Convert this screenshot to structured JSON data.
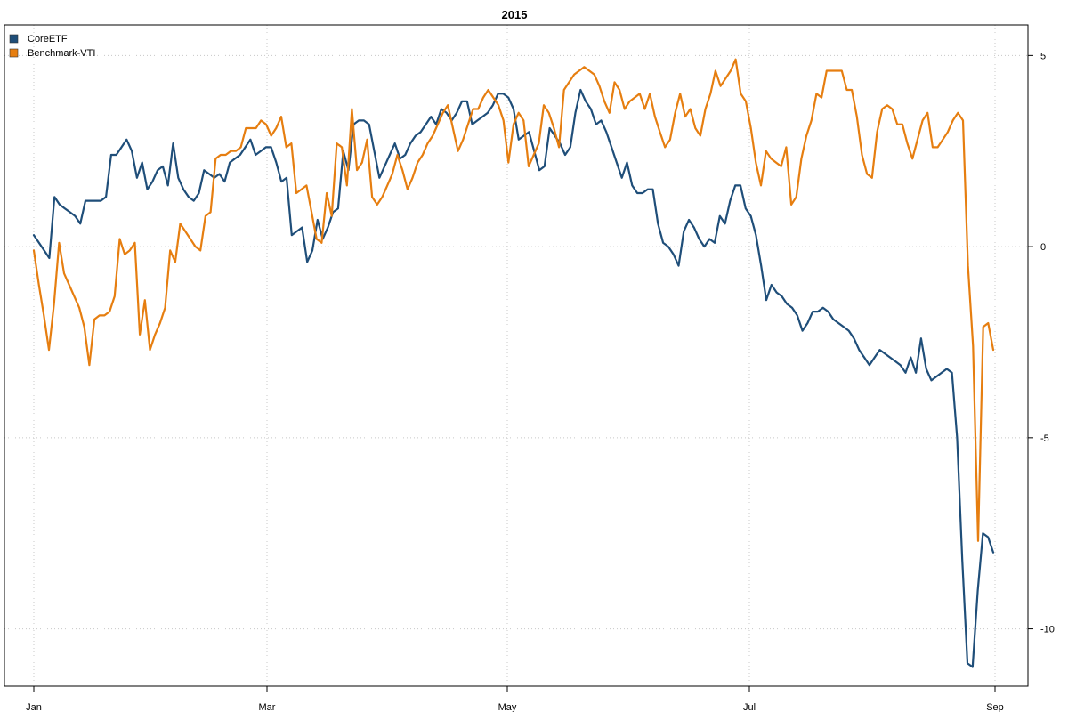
{
  "chart_data": {
    "type": "line",
    "title": "2015",
    "xlabel": "",
    "ylabel": "",
    "x_ticks": [
      "Jan",
      "Mar",
      "May",
      "Jul",
      "Sep"
    ],
    "y_ticks": [
      -10,
      -5,
      0,
      5
    ],
    "ylim": [
      -11.5,
      5.8
    ],
    "grid": true,
    "legend_position": "top-left",
    "y_axis_side": "right",
    "series": [
      {
        "name": "CoreETF",
        "color": "#1f4e79",
        "values": [
          0.3,
          0.1,
          -0.1,
          -0.3,
          1.3,
          1.1,
          1.0,
          0.9,
          0.8,
          0.6,
          1.2,
          1.2,
          1.2,
          1.2,
          1.3,
          2.4,
          2.4,
          2.6,
          2.8,
          2.5,
          1.8,
          2.2,
          1.5,
          1.7,
          2.0,
          2.1,
          1.6,
          2.7,
          1.8,
          1.5,
          1.3,
          1.2,
          1.4,
          2.0,
          1.9,
          1.8,
          1.9,
          1.7,
          2.2,
          2.3,
          2.4,
          2.6,
          2.8,
          2.4,
          2.5,
          2.6,
          2.6,
          2.2,
          1.7,
          1.8,
          0.3,
          0.4,
          0.5,
          -0.4,
          -0.1,
          0.7,
          0.2,
          0.5,
          0.9,
          1.0,
          2.5,
          2.0,
          3.2,
          3.3,
          3.3,
          3.2,
          2.5,
          1.8,
          2.1,
          2.4,
          2.7,
          2.3,
          2.4,
          2.7,
          2.9,
          3.0,
          3.2,
          3.4,
          3.2,
          3.6,
          3.5,
          3.3,
          3.5,
          3.8,
          3.8,
          3.2,
          3.3,
          3.4,
          3.5,
          3.7,
          4.0,
          4.0,
          3.9,
          3.6,
          2.8,
          2.9,
          3.0,
          2.5,
          2.0,
          2.1,
          3.1,
          2.9,
          2.7,
          2.4,
          2.6,
          3.5,
          4.1,
          3.8,
          3.6,
          3.2,
          3.3,
          3.0,
          2.6,
          2.2,
          1.8,
          2.2,
          1.6,
          1.4,
          1.4,
          1.5,
          1.5,
          0.6,
          0.1,
          0.0,
          -0.2,
          -0.5,
          0.4,
          0.7,
          0.5,
          0.2,
          0.0,
          0.2,
          0.1,
          0.8,
          0.6,
          1.2,
          1.6,
          1.6,
          1.0,
          0.8,
          0.3,
          -0.5,
          -1.4,
          -1.0,
          -1.2,
          -1.3,
          -1.5,
          -1.6,
          -1.8,
          -2.2,
          -2.0,
          -1.7,
          -1.7,
          -1.6,
          -1.7,
          -1.9,
          -2.0,
          -2.1,
          -2.2,
          -2.4,
          -2.7,
          -2.9,
          -3.1,
          -2.9,
          -2.7,
          -2.8,
          -2.9,
          -3.0,
          -3.1,
          -3.3,
          -2.9,
          -3.3,
          -2.4,
          -3.2,
          -3.5,
          -3.4,
          -3.3,
          -3.2,
          -3.3,
          -5.0,
          -8.2,
          -10.9,
          -11.0,
          -9.0,
          -7.5,
          -7.6,
          -8.0
        ]
      },
      {
        "name": "Benchmark-VTI",
        "color": "#e67e10",
        "values": [
          -0.1,
          -1.0,
          -1.8,
          -2.7,
          -1.5,
          0.1,
          -0.7,
          -1.0,
          -1.3,
          -1.6,
          -2.1,
          -3.1,
          -1.9,
          -1.8,
          -1.8,
          -1.7,
          -1.3,
          0.2,
          -0.2,
          -0.1,
          0.1,
          -2.3,
          -1.4,
          -2.7,
          -2.3,
          -2.0,
          -1.6,
          -0.1,
          -0.4,
          0.6,
          0.4,
          0.2,
          0.0,
          -0.1,
          0.8,
          0.9,
          2.3,
          2.4,
          2.4,
          2.5,
          2.5,
          2.6,
          3.1,
          3.1,
          3.1,
          3.3,
          3.2,
          2.9,
          3.1,
          3.4,
          2.6,
          2.7,
          1.4,
          1.5,
          1.6,
          0.9,
          0.2,
          0.1,
          1.4,
          0.8,
          2.7,
          2.6,
          1.6,
          3.6,
          2.0,
          2.2,
          2.8,
          1.3,
          1.1,
          1.3,
          1.6,
          1.9,
          2.4,
          2.0,
          1.5,
          1.8,
          2.2,
          2.4,
          2.7,
          2.9,
          3.2,
          3.5,
          3.7,
          3.1,
          2.5,
          2.8,
          3.2,
          3.6,
          3.6,
          3.9,
          4.1,
          3.9,
          3.7,
          3.3,
          2.2,
          3.2,
          3.5,
          3.3,
          2.1,
          2.4,
          2.7,
          3.7,
          3.5,
          3.1,
          2.6,
          4.1,
          4.3,
          4.5,
          4.6,
          4.7,
          4.6,
          4.5,
          4.2,
          3.8,
          3.5,
          4.3,
          4.1,
          3.6,
          3.8,
          3.9,
          4.0,
          3.6,
          4.0,
          3.4,
          3.0,
          2.6,
          2.8,
          3.5,
          4.0,
          3.4,
          3.6,
          3.1,
          2.9,
          3.6,
          4.0,
          4.6,
          4.2,
          4.4,
          4.6,
          4.9,
          4.0,
          3.8,
          3.1,
          2.2,
          1.6,
          2.5,
          2.3,
          2.2,
          2.1,
          2.6,
          1.1,
          1.3,
          2.3,
          2.9,
          3.3,
          4.0,
          3.9,
          4.6,
          4.6,
          4.6,
          4.6,
          4.1,
          4.1,
          3.4,
          2.4,
          1.9,
          1.8,
          3.0,
          3.6,
          3.7,
          3.6,
          3.2,
          3.2,
          2.7,
          2.3,
          2.8,
          3.3,
          3.5,
          2.6,
          2.6,
          2.8,
          3.0,
          3.3,
          3.5,
          3.3,
          -0.5,
          -2.6,
          -7.7,
          -2.1,
          -2.0,
          -2.7
        ]
      }
    ]
  }
}
